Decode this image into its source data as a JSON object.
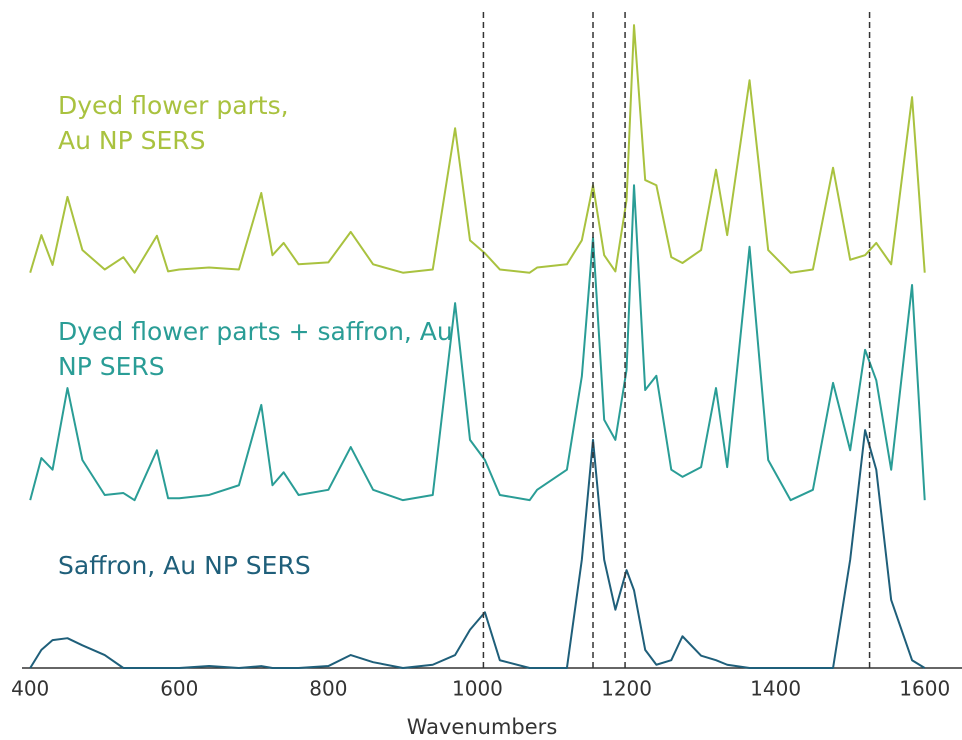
{
  "chart_data": {
    "type": "line",
    "x_label": "Wavenumbers",
    "xlim": [
      389,
      1650
    ],
    "xticks": [
      400,
      600,
      800,
      1000,
      1200,
      1400,
      1600
    ],
    "ylim": [
      0,
      100
    ],
    "grid": false,
    "vlines": [
      1008,
      1155,
      1198,
      1526
    ],
    "x": [
      400,
      415,
      430,
      450,
      470,
      500,
      525,
      540,
      570,
      585,
      600,
      640,
      680,
      710,
      725,
      740,
      760,
      800,
      830,
      860,
      900,
      940,
      970,
      990,
      1010,
      1030,
      1070,
      1080,
      1120,
      1140,
      1155,
      1170,
      1185,
      1200,
      1210,
      1225,
      1240,
      1260,
      1275,
      1300,
      1320,
      1335,
      1365,
      1390,
      1420,
      1450,
      1477,
      1500,
      1520,
      1535,
      1555,
      1583,
      1600
    ],
    "series": [
      {
        "name": "Dyed flower parts, Au NP SERS",
        "color": "#a9c23f",
        "values": [
          61,
          66.8,
          62.2,
          72.7,
          64.5,
          61.5,
          63.4,
          61,
          66.7,
          61.2,
          61.5,
          61.8,
          61.5,
          73.3,
          63.7,
          65.6,
          62.3,
          62.6,
          67.3,
          62.3,
          61,
          61.5,
          83.3,
          66,
          64,
          61.5,
          61,
          61.8,
          62.3,
          66,
          74.5,
          63.7,
          61.2,
          72.2,
          99.2,
          75.3,
          74.5,
          63.4,
          62.5,
          64.5,
          76.9,
          66.8,
          90.7,
          64.5,
          61,
          61.5,
          77.2,
          63,
          63.7,
          65.6,
          62.3,
          88.1,
          61
        ]
      },
      {
        "name": "Dyed flower parts + saffron, Au NP SERS",
        "color": "#2a9d96",
        "values": [
          25.9,
          32.4,
          30.6,
          43.2,
          32.1,
          26.7,
          27,
          25.9,
          33.6,
          26.2,
          26.2,
          26.7,
          28.2,
          40.6,
          28.2,
          30.2,
          26.7,
          27.5,
          34.1,
          27.5,
          25.9,
          26.7,
          56.3,
          35.2,
          32.1,
          26.7,
          25.9,
          27.5,
          30.6,
          45,
          66.4,
          38.3,
          35.2,
          46,
          74.5,
          42.9,
          45.1,
          30.6,
          29.5,
          31,
          43.2,
          31,
          65,
          32.1,
          25.9,
          27.5,
          44,
          33.6,
          49.1,
          44.4,
          30.6,
          59.1,
          25.9
        ]
      },
      {
        "name": "Saffron, Au NP SERS",
        "color": "#1f5f7a",
        "values": [
          0,
          2.8,
          4.3,
          4.6,
          3.5,
          2,
          0,
          0,
          0,
          0,
          0,
          0.3,
          0,
          0.3,
          0,
          0,
          0,
          0.3,
          2,
          0.9,
          0,
          0.5,
          2,
          5.9,
          8.6,
          1.2,
          0,
          0,
          0,
          16.7,
          35.2,
          16.7,
          9,
          15.1,
          12,
          2.8,
          0.5,
          1.2,
          4.9,
          1.9,
          1.2,
          0.5,
          0,
          0,
          0,
          0,
          0,
          16.7,
          36.7,
          30.6,
          10.5,
          1.2,
          0
        ]
      }
    ]
  }
}
